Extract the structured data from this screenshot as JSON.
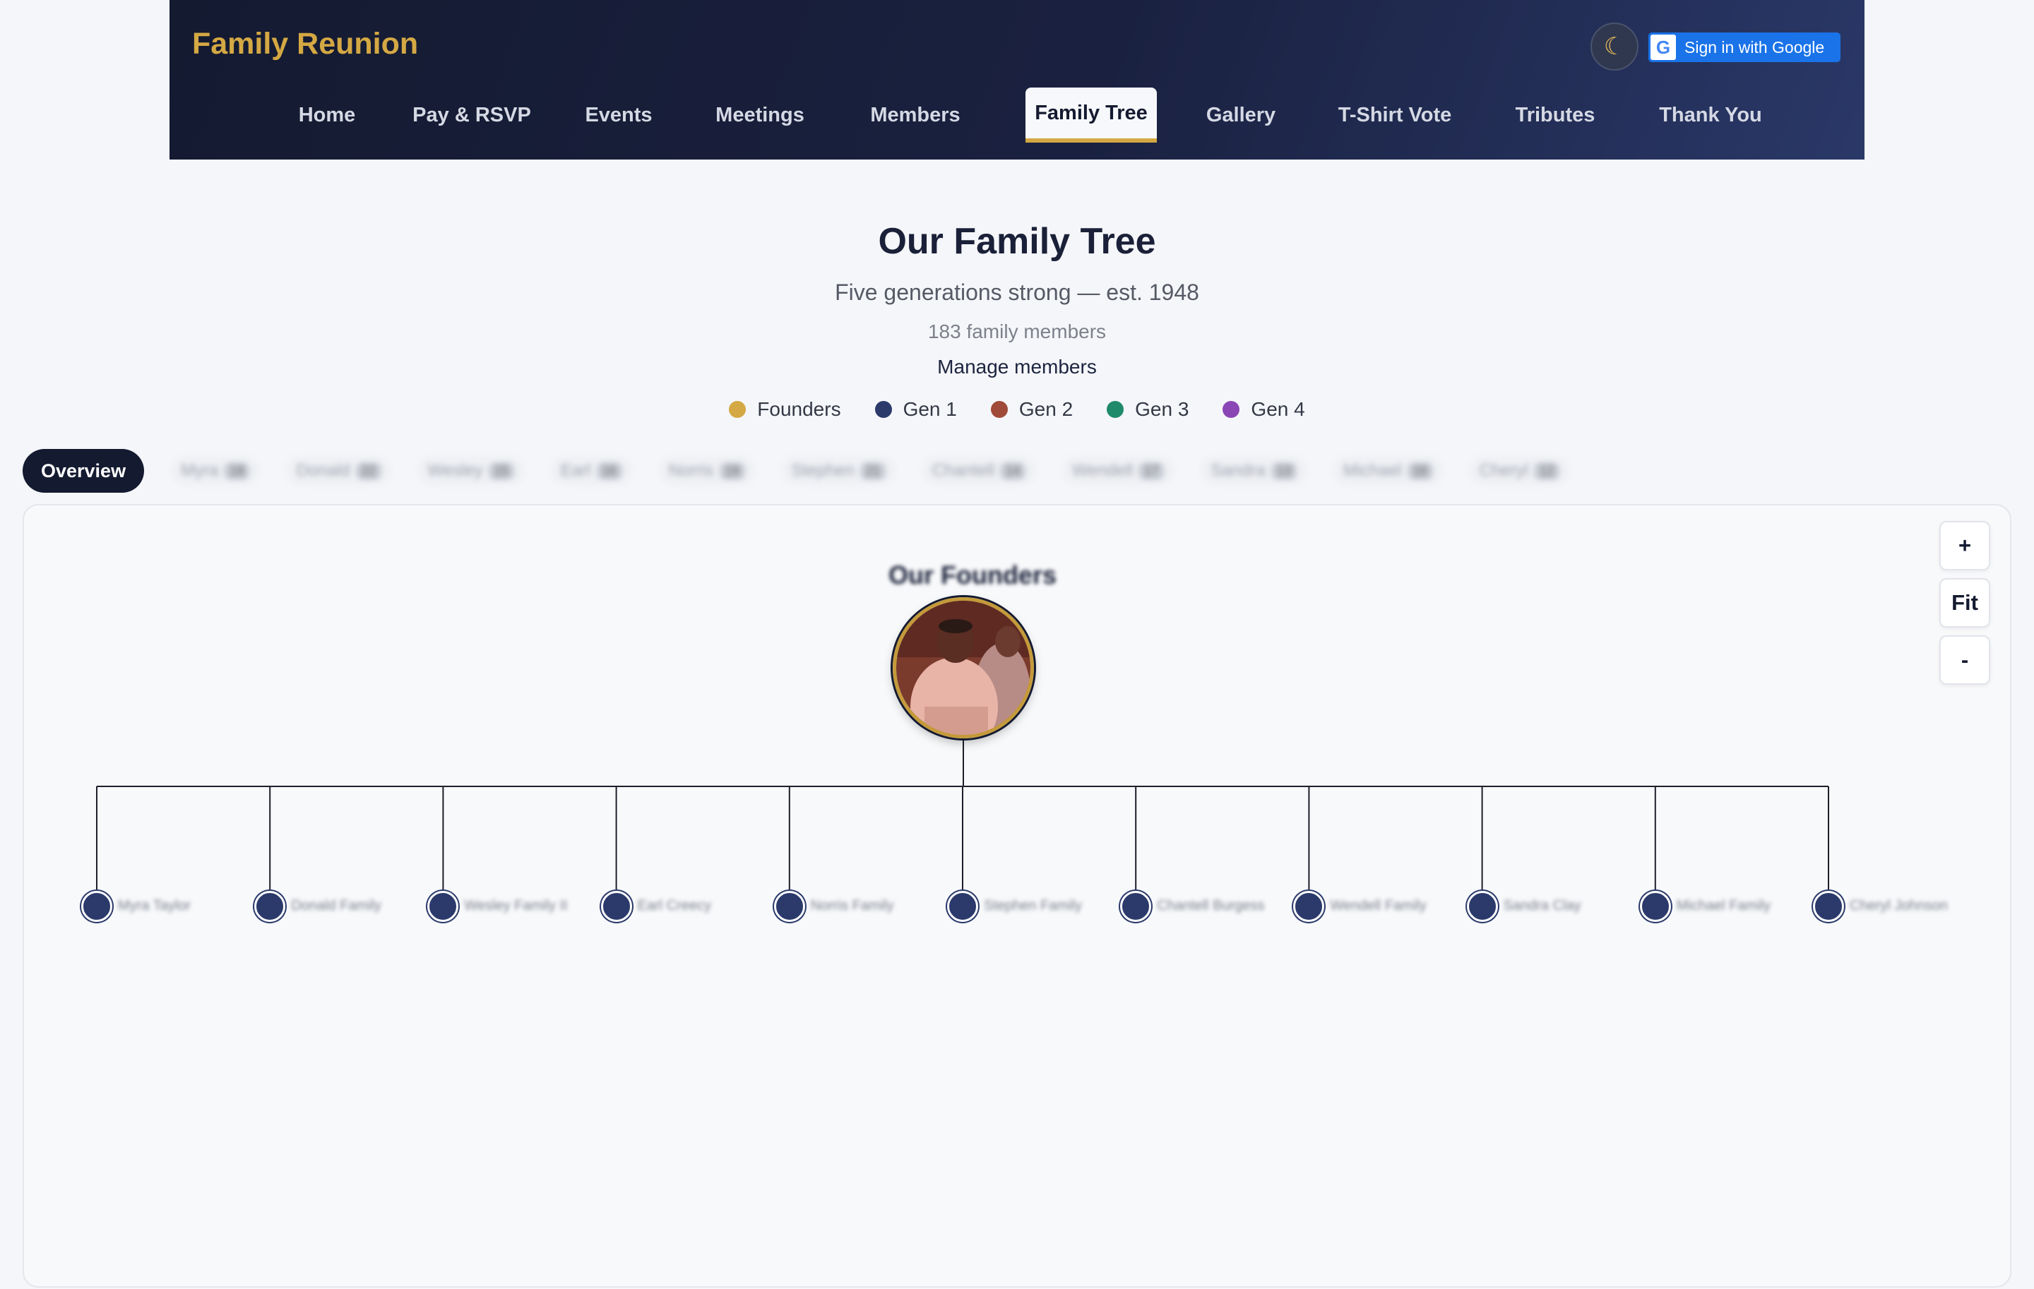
{
  "header": {
    "brand": "Family Reunion",
    "theme_icon": "moon-icon",
    "google_button": "Sign in with Google",
    "nav": [
      {
        "label": "Home"
      },
      {
        "label": "Pay & RSVP"
      },
      {
        "label": "Events"
      },
      {
        "label": "Meetings"
      },
      {
        "label": "Members"
      },
      {
        "label": "Family Tree",
        "active": true
      },
      {
        "label": "Gallery"
      },
      {
        "label": "T-Shirt Vote"
      },
      {
        "label": "Tributes"
      },
      {
        "label": "Thank You"
      }
    ]
  },
  "page": {
    "title": "Our Family Tree",
    "subtitle": "Five generations strong — est. 1948",
    "member_count": "183 family members",
    "manage_link": "Manage members"
  },
  "legend": [
    {
      "label": "Founders",
      "color": "#d4a843"
    },
    {
      "label": "Gen 1",
      "color": "#2b3a6b"
    },
    {
      "label": "Gen 2",
      "color": "#a04a3a"
    },
    {
      "label": "Gen 3",
      "color": "#1f8a6a"
    },
    {
      "label": "Gen 4",
      "color": "#8a46b4"
    }
  ],
  "tabs": {
    "active": "Overview",
    "branches": [
      {
        "label": "Myra",
        "count": "18"
      },
      {
        "label": "Donald",
        "count": "22"
      },
      {
        "label": "Wesley",
        "count": "15"
      },
      {
        "label": "Earl",
        "count": "16"
      },
      {
        "label": "Norris",
        "count": "19"
      },
      {
        "label": "Stephen",
        "count": "21"
      },
      {
        "label": "Chantell",
        "count": "14"
      },
      {
        "label": "Wendell",
        "count": "17"
      },
      {
        "label": "Sandra",
        "count": "13"
      },
      {
        "label": "Michael",
        "count": "16"
      },
      {
        "label": "Cheryl",
        "count": "12"
      }
    ]
  },
  "tree": {
    "founders_label": "Our Founders",
    "zoom_in": "+",
    "fit": "Fit",
    "zoom_out": "-",
    "children": [
      {
        "name": "Myra Taylor"
      },
      {
        "name": "Donald Family"
      },
      {
        "name": "Wesley Family II"
      },
      {
        "name": "Earl Creecy"
      },
      {
        "name": "Norris Family"
      },
      {
        "name": "Stephen Family"
      },
      {
        "name": "Chantell Burgess"
      },
      {
        "name": "Wendell Family"
      },
      {
        "name": "Sandra Clay"
      },
      {
        "name": "Michael Family"
      },
      {
        "name": "Cheryl Johnson"
      }
    ]
  }
}
